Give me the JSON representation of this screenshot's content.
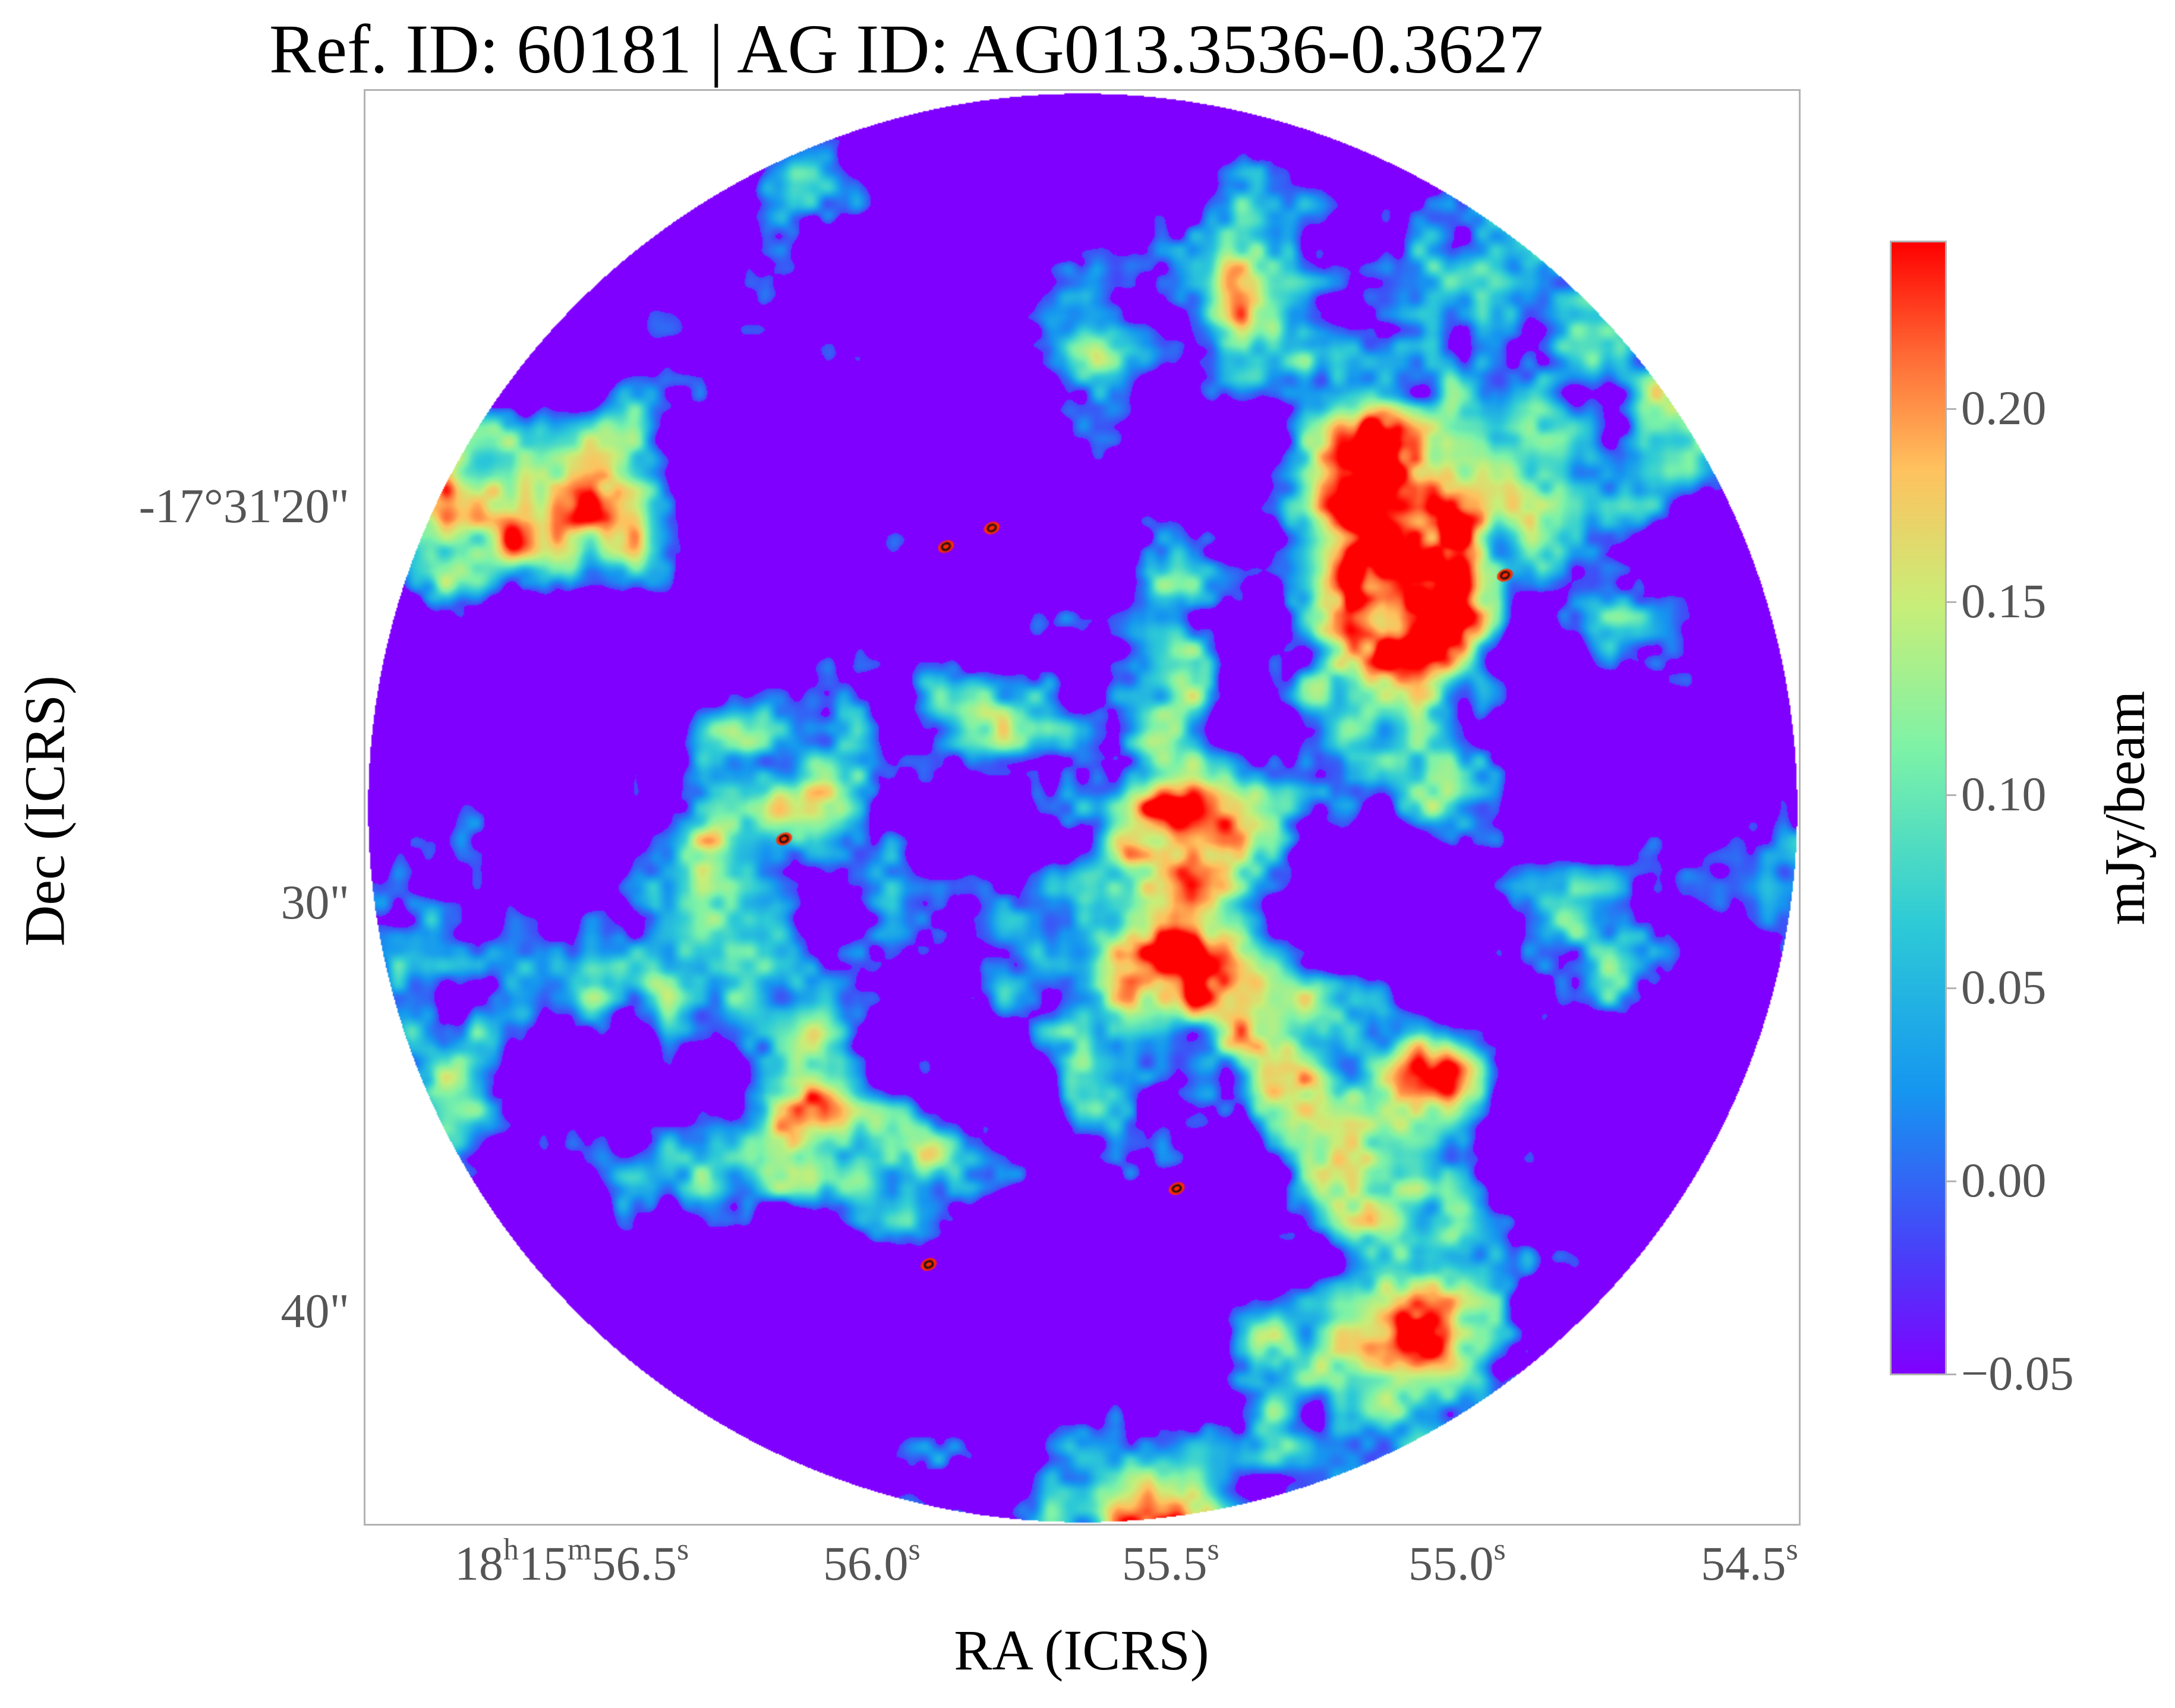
{
  "title": "Ref. ID: 60181 | AG ID: AG013.3536-0.3627",
  "x_axis": {
    "label": "RA (ICRS)",
    "ticks": [
      {
        "h": "18",
        "h_sup": "h",
        "m": "15",
        "m_sup": "m",
        "s": "56.5",
        "s_sup": "s"
      },
      {
        "s": "56.0",
        "s_sup": "s"
      },
      {
        "s": "55.5",
        "s_sup": "s"
      },
      {
        "s": "55.0",
        "s_sup": "s"
      },
      {
        "s": "54.5",
        "s_sup": "s"
      }
    ]
  },
  "y_axis": {
    "label": "Dec (ICRS)",
    "ticks": [
      "-17°31'20\"",
      "30\"",
      "40\""
    ]
  },
  "colorbar": {
    "label": "mJy/beam",
    "ticks": [
      "0.20",
      "0.15",
      "0.10",
      "0.05",
      "0.00",
      "−0.05"
    ],
    "colormap": "rainbow"
  },
  "colors": {
    "low": "#8000ff",
    "high": "#ff0000",
    "frame": "#b3b3b3"
  }
}
